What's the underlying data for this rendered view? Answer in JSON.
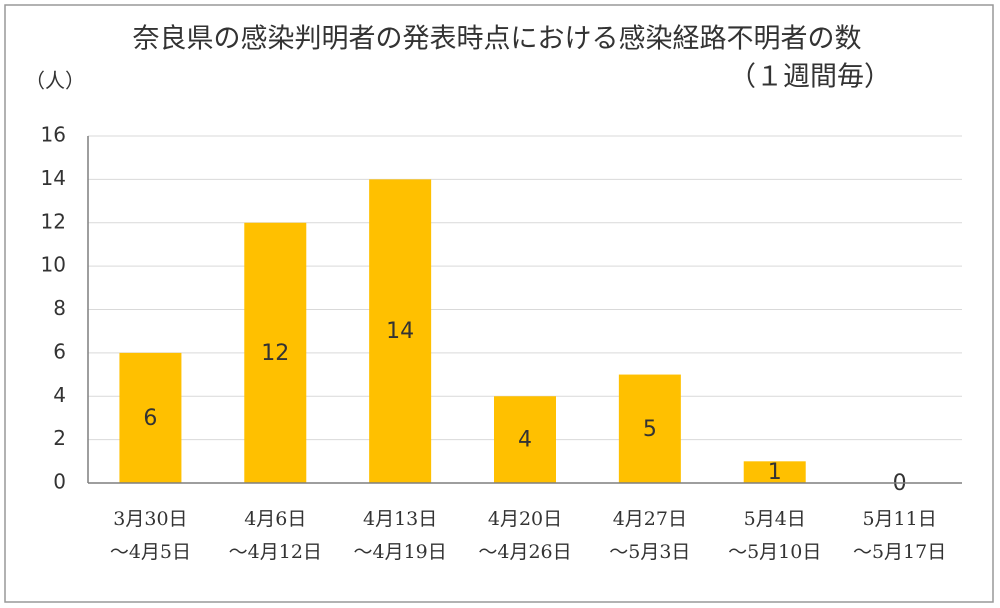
{
  "chart_data": {
    "type": "bar",
    "title": "奈良県の感染判明者の発表時点における感染経路不明者の数",
    "subtitle": "（１週間毎）",
    "y_label": "（人）",
    "categories": [
      [
        "3月30日",
        "～4月5日"
      ],
      [
        "4月6日",
        "～4月12日"
      ],
      [
        "4月13日",
        "～4月19日"
      ],
      [
        "4月20日",
        "～4月26日"
      ],
      [
        "4月27日",
        "～5月3日"
      ],
      [
        "5月4日",
        "～5月10日"
      ],
      [
        "5月11日",
        "～5月17日"
      ]
    ],
    "values": [
      6,
      12,
      14,
      4,
      5,
      1,
      0
    ],
    "color": "#ffc000",
    "ylim": [
      0,
      16
    ],
    "yticks": [
      0,
      2,
      4,
      6,
      8,
      10,
      12,
      14,
      16
    ],
    "grid": true
  }
}
